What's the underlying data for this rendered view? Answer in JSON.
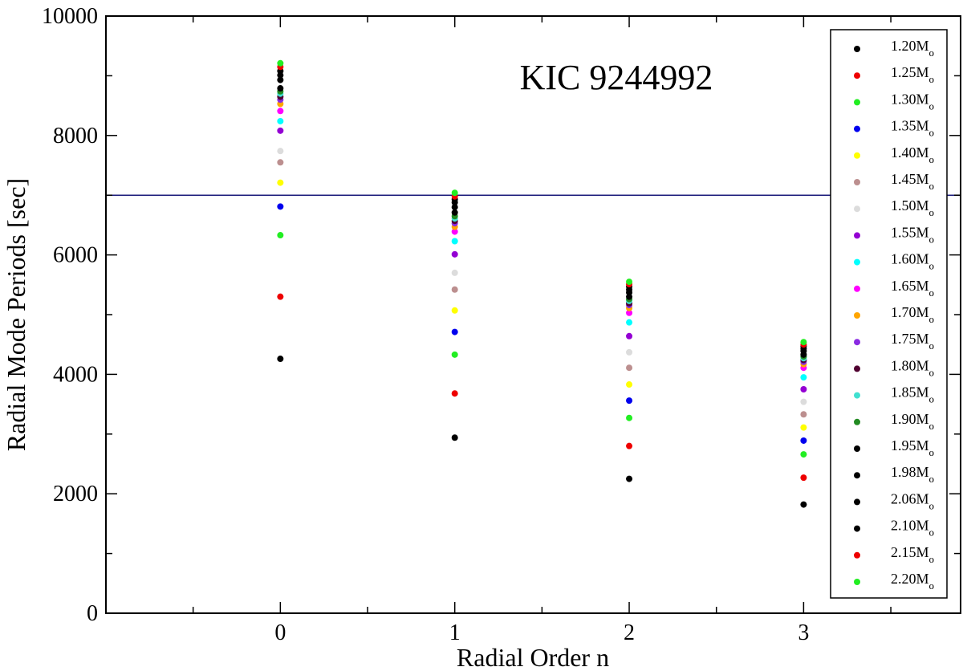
{
  "chart_data": {
    "type": "scatter",
    "title": "",
    "annotation": "KIC 9244992",
    "xlabel": "Radial Order n",
    "ylabel": "Radial Mode Periods [sec]",
    "xlim": [
      -1,
      3.9
    ],
    "ylim": [
      0,
      10000
    ],
    "xticks": [
      0,
      1,
      2,
      3
    ],
    "xtick_labels": [
      "0",
      "1",
      "2",
      "3"
    ],
    "yticks": [
      0,
      2000,
      4000,
      6000,
      8000,
      10000
    ],
    "ytick_labels": [
      "0",
      "2000",
      "4000",
      "6000",
      "8000",
      "10000"
    ],
    "grid": false,
    "legend_position": "right",
    "mass_unit": "M",
    "mass_subscript": "o",
    "reference_line": {
      "y": 7000,
      "color": "#1a1a7a"
    },
    "x": [
      0,
      1,
      2,
      3
    ],
    "series": [
      {
        "name": "1.20",
        "color": "#000000",
        "values": [
          4260,
          2940,
          2250,
          1820
        ]
      },
      {
        "name": "1.25",
        "color": "#ee0000",
        "values": [
          5300,
          3680,
          2800,
          2270
        ]
      },
      {
        "name": "1.30",
        "color": "#22ee22",
        "values": [
          6330,
          4330,
          3270,
          2660
        ]
      },
      {
        "name": "1.35",
        "color": "#0000ee",
        "values": [
          6810,
          4710,
          3560,
          2890
        ]
      },
      {
        "name": "1.40",
        "color": "#ffff00",
        "values": [
          7210,
          5070,
          3830,
          3110
        ]
      },
      {
        "name": "1.45",
        "color": "#bc8f8f",
        "values": [
          7550,
          5420,
          4110,
          3330
        ]
      },
      {
        "name": "1.50",
        "color": "#dcdcdc",
        "values": [
          7740,
          5700,
          4370,
          3540
        ]
      },
      {
        "name": "1.55",
        "color": "#9400d3",
        "values": [
          8080,
          6010,
          4640,
          3750
        ]
      },
      {
        "name": "1.60",
        "color": "#00ffff",
        "values": [
          8240,
          6230,
          4870,
          3950
        ]
      },
      {
        "name": "1.65",
        "color": "#ff00ff",
        "values": [
          8410,
          6390,
          5030,
          4110
        ]
      },
      {
        "name": "1.70",
        "color": "#ffa500",
        "values": [
          8530,
          6470,
          5110,
          4170
        ]
      },
      {
        "name": "1.75",
        "color": "#8a2be2",
        "values": [
          8600,
          6530,
          5160,
          4210
        ]
      },
      {
        "name": "1.80",
        "color": "#500030",
        "values": [
          8650,
          6570,
          5190,
          4240
        ]
      },
      {
        "name": "1.85",
        "color": "#40e0d0",
        "values": [
          8700,
          6610,
          5230,
          4270
        ]
      },
      {
        "name": "1.90",
        "color": "#228b22",
        "values": [
          8740,
          6650,
          5260,
          4300
        ]
      },
      {
        "name": "1.95",
        "color": "#000000",
        "values": [
          8790,
          6710,
          5300,
          4330
        ]
      },
      {
        "name": "1.98",
        "color": "#000000",
        "values": [
          8930,
          6800,
          5370,
          4390
        ]
      },
      {
        "name": "2.06",
        "color": "#000000",
        "values": [
          9010,
          6880,
          5420,
          4430
        ]
      },
      {
        "name": "2.10",
        "color": "#000000",
        "values": [
          9080,
          6930,
          5470,
          4470
        ]
      },
      {
        "name": "2.15",
        "color": "#ee0000",
        "values": [
          9150,
          6980,
          5510,
          4500
        ]
      },
      {
        "name": "2.20",
        "color": "#22ee22",
        "values": [
          9210,
          7040,
          5550,
          4540
        ]
      }
    ]
  }
}
